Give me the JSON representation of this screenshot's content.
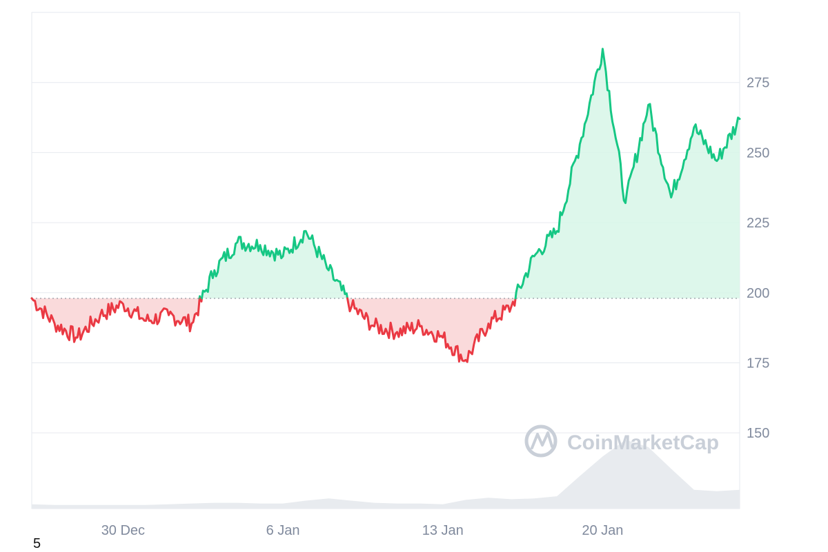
{
  "watermark": {
    "text": "CoinMarketCap"
  },
  "corner_note": "5",
  "colors": {
    "up": "#16c784",
    "down": "#ea3943",
    "up_fill": "#d7f6e8",
    "down_fill": "#f9d3d5",
    "volume": "#e8ebef",
    "grid": "#e6e9ef",
    "baseline": "#8a8f99",
    "axis_text": "#808a9d",
    "watermark": "#c9cfd8"
  },
  "chart_data": {
    "type": "area",
    "title": "",
    "xlabel": "",
    "ylabel": "",
    "baseline": 198,
    "ylim": [
      123,
      300
    ],
    "yticks": [
      150,
      175,
      200,
      225,
      250,
      275
    ],
    "xlim": [
      "2024-12-26",
      "2025-01-26"
    ],
    "xticks": [
      {
        "x": "2024-12-30",
        "label": "30 Dec"
      },
      {
        "x": "2025-01-06",
        "label": "6 Jan"
      },
      {
        "x": "2025-01-13",
        "label": "13 Jan"
      },
      {
        "x": "2025-01-20",
        "label": "20 Jan"
      }
    ],
    "grid": true,
    "price": {
      "x": [
        "2024-12-26",
        "2024-12-27",
        "2024-12-28",
        "2024-12-29",
        "2024-12-30",
        "2024-12-31",
        "2025-01-01",
        "2025-01-02",
        "2025-01-03",
        "2025-01-04",
        "2025-01-05",
        "2025-01-06",
        "2025-01-07",
        "2025-01-08",
        "2025-01-09",
        "2025-01-10",
        "2025-01-11",
        "2025-01-12",
        "2025-01-13",
        "2025-01-14",
        "2025-01-15",
        "2025-01-16",
        "2025-01-17",
        "2025-01-18",
        "2025-01-19",
        "2025-01-20",
        "2025-01-21",
        "2025-01-22",
        "2025-01-23",
        "2025-01-24",
        "2025-01-25",
        "2025-01-26"
      ],
      "y": [
        198,
        189,
        184,
        192,
        196,
        190,
        192,
        189,
        208,
        218,
        217,
        213,
        222,
        208,
        195,
        188,
        186,
        188,
        184,
        176,
        189,
        195,
        213,
        222,
        253,
        287,
        232,
        267,
        234,
        259,
        247,
        262
      ]
    },
    "volume": {
      "x": [
        "2024-12-26",
        "2024-12-27",
        "2024-12-28",
        "2024-12-29",
        "2024-12-30",
        "2024-12-31",
        "2025-01-01",
        "2025-01-02",
        "2025-01-03",
        "2025-01-04",
        "2025-01-05",
        "2025-01-06",
        "2025-01-07",
        "2025-01-08",
        "2025-01-09",
        "2025-01-10",
        "2025-01-11",
        "2025-01-12",
        "2025-01-13",
        "2025-01-14",
        "2025-01-15",
        "2025-01-16",
        "2025-01-17",
        "2025-01-18",
        "2025-01-19",
        "2025-01-20",
        "2025-01-21",
        "2025-01-22",
        "2025-01-23",
        "2025-01-24",
        "2025-01-25",
        "2025-01-26"
      ],
      "y": [
        0.06,
        0.05,
        0.05,
        0.05,
        0.05,
        0.05,
        0.06,
        0.07,
        0.08,
        0.08,
        0.07,
        0.07,
        0.11,
        0.14,
        0.11,
        0.08,
        0.07,
        0.07,
        0.06,
        0.12,
        0.15,
        0.13,
        0.14,
        0.17,
        0.45,
        0.72,
        0.95,
        0.85,
        0.55,
        0.26,
        0.24,
        0.26
      ]
    }
  }
}
